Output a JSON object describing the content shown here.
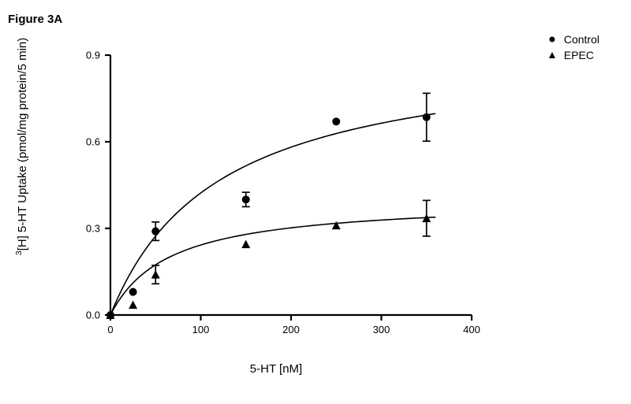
{
  "figure_label": "Figure 3A",
  "chart": {
    "type": "scatter-with-fit",
    "background_color": "#ffffff",
    "axis_color": "#000000",
    "axis_linewidth": 2.2,
    "tick_length": 7,
    "tick_linewidth": 2.2,
    "xlabel": "5-HT [nM]",
    "ylabel_prefix_sup": "3",
    "ylabel_rest": "[H] 5-HT Uptake (pmol/mg protein/5 min)",
    "label_fontsize": 15,
    "tick_fontsize": 13,
    "xlim": [
      0,
      400
    ],
    "ylim": [
      0.0,
      0.9
    ],
    "xticks": [
      0,
      100,
      200,
      300,
      400
    ],
    "yticks": [
      0.0,
      0.3,
      0.6,
      0.9
    ],
    "ytick_decimals": 1,
    "marker_size": 5,
    "errorbar_cap": 5,
    "errorbar_linewidth": 1.7,
    "curve_linewidth": 1.6,
    "legend": {
      "items": [
        {
          "label": "Control",
          "marker": "circle",
          "color": "#000000"
        },
        {
          "label": "EPEC",
          "marker": "triangle",
          "color": "#000000"
        }
      ],
      "fontsize": 14
    },
    "series": [
      {
        "name": "Control",
        "marker": "circle",
        "color": "#000000",
        "points": [
          {
            "x": 0,
            "y": 0.0,
            "err": 0.0
          },
          {
            "x": 25,
            "y": 0.08,
            "err": 0.0
          },
          {
            "x": 50,
            "y": 0.29,
            "err": 0.032
          },
          {
            "x": 150,
            "y": 0.4,
            "err": 0.025
          },
          {
            "x": 250,
            "y": 0.67,
            "err": 0.0
          },
          {
            "x": 350,
            "y": 0.685,
            "err": 0.083
          }
        ],
        "fit": {
          "vmax": 0.93,
          "km": 120
        }
      },
      {
        "name": "EPEC",
        "marker": "triangle",
        "color": "#000000",
        "points": [
          {
            "x": 0,
            "y": 0.0,
            "err": 0.0
          },
          {
            "x": 25,
            "y": 0.035,
            "err": 0.0
          },
          {
            "x": 50,
            "y": 0.14,
            "err": 0.032
          },
          {
            "x": 150,
            "y": 0.245,
            "err": 0.0
          },
          {
            "x": 250,
            "y": 0.31,
            "err": 0.0
          },
          {
            "x": 350,
            "y": 0.335,
            "err": 0.062
          }
        ],
        "fit": {
          "vmax": 0.4,
          "km": 65
        }
      }
    ]
  }
}
